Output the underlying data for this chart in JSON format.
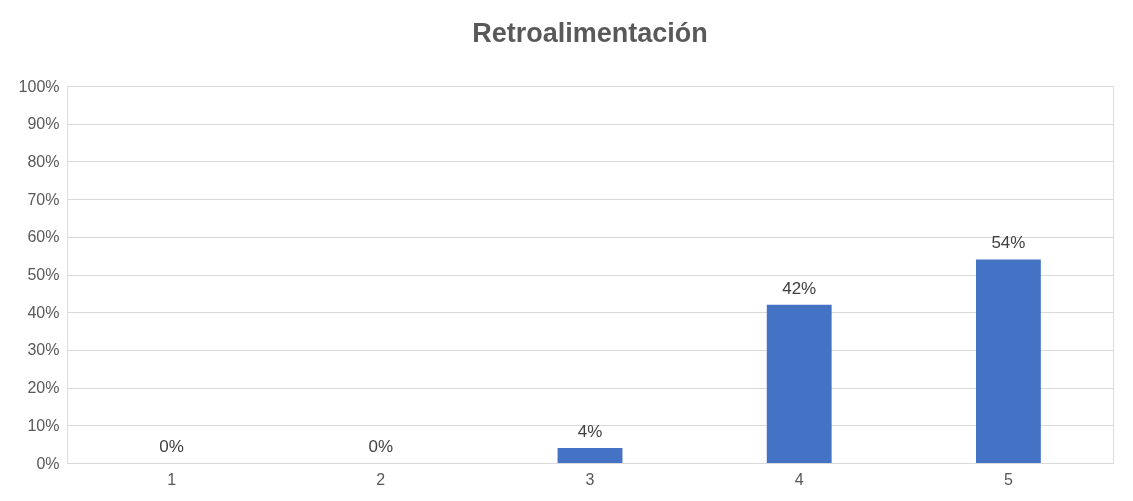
{
  "chart_data": {
    "type": "bar",
    "title": "Retroalimentación",
    "categories": [
      "1",
      "2",
      "3",
      "4",
      "5"
    ],
    "values": [
      0,
      0,
      4,
      42,
      54
    ],
    "value_labels": [
      "0%",
      "0%",
      "4%",
      "42%",
      "54%"
    ],
    "color": "#4472c4",
    "ylim": [
      0,
      100
    ],
    "yticks": [
      {
        "value": 0,
        "label": "0%"
      },
      {
        "value": 10,
        "label": "10%"
      },
      {
        "value": 20,
        "label": "20%"
      },
      {
        "value": 30,
        "label": "30%"
      },
      {
        "value": 40,
        "label": "40%"
      },
      {
        "value": 50,
        "label": "50%"
      },
      {
        "value": 60,
        "label": "60%"
      },
      {
        "value": 70,
        "label": "70%"
      },
      {
        "value": 80,
        "label": "80%"
      },
      {
        "value": 90,
        "label": "90%"
      },
      {
        "value": 100,
        "label": "100%"
      }
    ],
    "grid": "y"
  }
}
